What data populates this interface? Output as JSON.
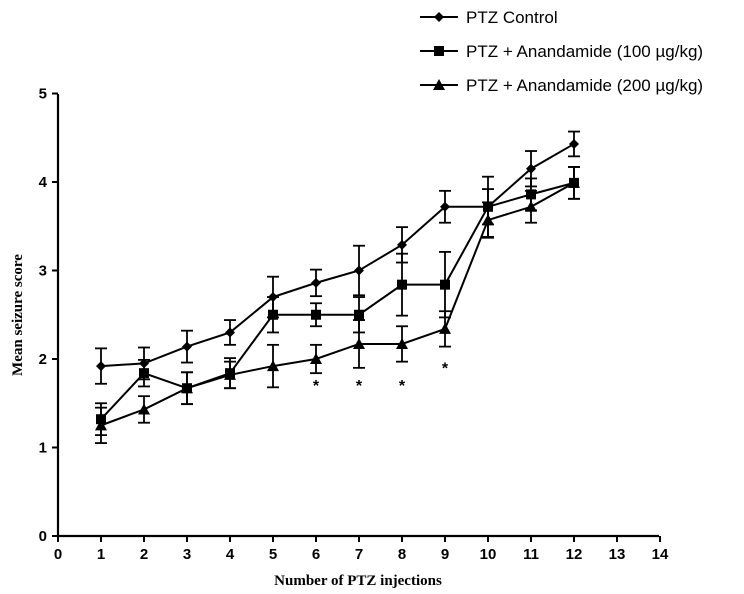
{
  "chart_data": {
    "type": "line",
    "xlabel": "Number of PTZ injections",
    "ylabel": "Mean seizure score",
    "xlim": [
      0,
      14
    ],
    "ylim": [
      0,
      5
    ],
    "xticks": [
      0,
      1,
      2,
      3,
      4,
      5,
      6,
      7,
      8,
      9,
      10,
      11,
      12,
      13,
      14
    ],
    "yticks": [
      0,
      1,
      2,
      3,
      4,
      5
    ],
    "grid": false,
    "legend_position": "top-right",
    "series": [
      {
        "name": "PTZ Control",
        "marker": "diamond",
        "x": [
          1,
          2,
          3,
          4,
          5,
          6,
          7,
          8,
          9,
          10,
          11,
          12
        ],
        "y": [
          1.92,
          1.95,
          2.14,
          2.3,
          2.7,
          2.86,
          3.0,
          3.29,
          3.72,
          3.72,
          4.15,
          4.43
        ],
        "error": [
          0.2,
          0.18,
          0.18,
          0.14,
          0.23,
          0.15,
          0.28,
          0.2,
          0.18,
          0.34,
          0.2,
          0.14
        ]
      },
      {
        "name": "PTZ + Anandamide (100 µg/kg)",
        "marker": "square",
        "x": [
          1,
          2,
          3,
          4,
          5,
          6,
          7,
          8,
          9,
          10,
          11,
          12
        ],
        "y": [
          1.32,
          1.84,
          1.67,
          1.84,
          2.5,
          2.5,
          2.5,
          2.84,
          2.84,
          3.72,
          3.86,
          3.99
        ],
        "error": [
          0.18,
          0.15,
          0.18,
          0.17,
          0.2,
          0.13,
          0.2,
          0.35,
          0.37,
          0.2,
          0.18,
          0.18
        ]
      },
      {
        "name": "PTZ + Anandamide (200 µg/kg)",
        "marker": "triangle",
        "x": [
          1,
          2,
          3,
          4,
          5,
          6,
          7,
          8,
          9,
          10,
          11,
          12
        ],
        "y": [
          1.25,
          1.43,
          1.67,
          1.82,
          1.92,
          2.0,
          2.17,
          2.17,
          2.34,
          3.57,
          3.72,
          3.99
        ],
        "error": [
          0.2,
          0.15,
          0.18,
          0.15,
          0.24,
          0.16,
          0.27,
          0.2,
          0.2,
          0.2,
          0.18,
          0.18
        ]
      }
    ],
    "annotations": [
      {
        "text": "*",
        "x": 6,
        "y": 1.75
      },
      {
        "text": "*",
        "x": 7,
        "y": 1.75
      },
      {
        "text": "*",
        "x": 8,
        "y": 1.75
      },
      {
        "text": "*",
        "x": 9,
        "y": 1.95
      }
    ]
  }
}
